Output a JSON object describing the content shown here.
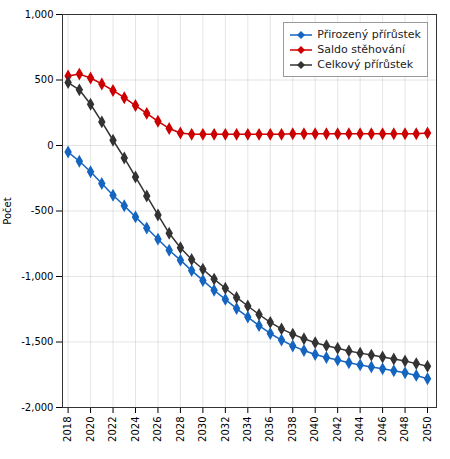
{
  "chart_data": {
    "type": "line",
    "x": [
      2018,
      2019,
      2020,
      2021,
      2022,
      2023,
      2024,
      2025,
      2026,
      2027,
      2028,
      2029,
      2030,
      2031,
      2032,
      2033,
      2034,
      2035,
      2036,
      2037,
      2038,
      2039,
      2040,
      2041,
      2042,
      2043,
      2044,
      2045,
      2046,
      2047,
      2048,
      2049,
      2050
    ],
    "series": [
      {
        "name": "Přirozený přírůstek",
        "color": "#1565C0",
        "marker": "diamond",
        "values": [
          -50,
          -120,
          -200,
          -290,
          -380,
          -460,
          -545,
          -630,
          -715,
          -800,
          -875,
          -955,
          -1030,
          -1105,
          -1175,
          -1245,
          -1310,
          -1375,
          -1435,
          -1485,
          -1530,
          -1565,
          -1595,
          -1618,
          -1638,
          -1658,
          -1675,
          -1690,
          -1705,
          -1720,
          -1735,
          -1755,
          -1780
        ]
      },
      {
        "name": "Saldo stěhování",
        "color": "#CC0000",
        "marker": "diamond",
        "values": [
          530,
          545,
          515,
          470,
          420,
          365,
          305,
          245,
          185,
          130,
          95,
          85,
          85,
          85,
          85,
          85,
          85,
          85,
          85,
          85,
          90,
          90,
          90,
          90,
          90,
          90,
          90,
          90,
          90,
          90,
          90,
          90,
          95
        ]
      },
      {
        "name": "Celkový přírůstek",
        "color": "#333333",
        "marker": "diamond",
        "values": [
          480,
          425,
          315,
          180,
          40,
          -95,
          -240,
          -385,
          -530,
          -670,
          -780,
          -870,
          -945,
          -1020,
          -1090,
          -1160,
          -1225,
          -1290,
          -1350,
          -1400,
          -1440,
          -1475,
          -1505,
          -1528,
          -1548,
          -1568,
          -1585,
          -1600,
          -1615,
          -1630,
          -1645,
          -1665,
          -1685
        ]
      }
    ],
    "y_label": "Počet",
    "xlim": [
      2017.5,
      2050.8
    ],
    "xticks": [
      2018,
      2020,
      2022,
      2024,
      2026,
      2028,
      2030,
      2032,
      2034,
      2036,
      2038,
      2040,
      2042,
      2044,
      2046,
      2048,
      2050
    ],
    "ylim": [
      -2000,
      1000
    ],
    "yticks": [
      {
        "value": -2000,
        "label": "-2,000"
      },
      {
        "value": -1500,
        "label": "-1,500"
      },
      {
        "value": -1000,
        "label": "-1,000"
      },
      -500,
      0,
      500,
      {
        "value": 1000,
        "label": "1,000"
      }
    ],
    "grid": true,
    "legend": "upper right"
  }
}
